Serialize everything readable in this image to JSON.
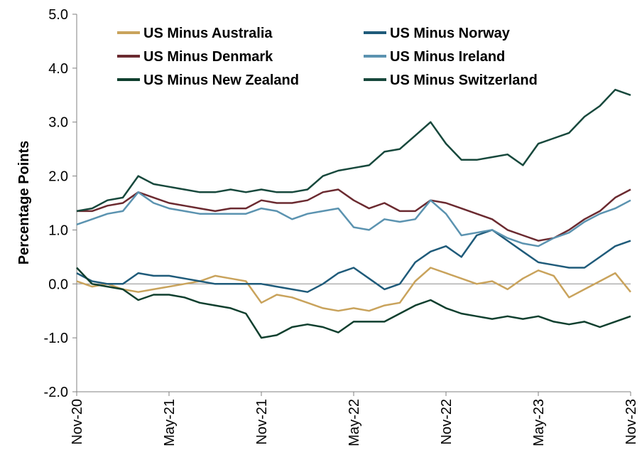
{
  "chart_data": {
    "type": "line",
    "title": "",
    "ylabel": "Percentage Points",
    "xlabel": "",
    "ylim": [
      -2.0,
      5.0
    ],
    "y_ticks": [
      "5.0",
      "4.0",
      "3.0",
      "2.0",
      "1.0",
      "0.0",
      "-1.0",
      "-2.0"
    ],
    "x_ticks": [
      "Nov-20",
      "May-21",
      "Nov-21",
      "May-22",
      "Nov-22",
      "May-23",
      "Nov-23"
    ],
    "xlim": [
      "2020-11",
      "2023-11"
    ],
    "grid": false,
    "legend_position": "top",
    "series": [
      {
        "name": "US Minus Australia",
        "color": "#C9A35C",
        "x": [
          "2020-11",
          "2020-12",
          "2021-01",
          "2021-02",
          "2021-03",
          "2021-04",
          "2021-05",
          "2021-06",
          "2021-07",
          "2021-08",
          "2021-09",
          "2021-10",
          "2021-11",
          "2021-12",
          "2022-01",
          "2022-02",
          "2022-03",
          "2022-04",
          "2022-05",
          "2022-06",
          "2022-07",
          "2022-08",
          "2022-09",
          "2022-10",
          "2022-11",
          "2022-12",
          "2023-01",
          "2023-02",
          "2023-03",
          "2023-04",
          "2023-05",
          "2023-06",
          "2023-07",
          "2023-08",
          "2023-09",
          "2023-10",
          "2023-11"
        ],
        "values": [
          0.05,
          -0.05,
          0.0,
          -0.1,
          -0.15,
          -0.1,
          -0.05,
          0.0,
          0.05,
          0.15,
          0.1,
          0.05,
          -0.35,
          -0.2,
          -0.25,
          -0.35,
          -0.45,
          -0.5,
          -0.45,
          -0.5,
          -0.4,
          -0.35,
          0.05,
          0.3,
          0.2,
          0.1,
          0.0,
          0.05,
          -0.1,
          0.1,
          0.25,
          0.15,
          -0.25,
          -0.1,
          0.05,
          0.2,
          -0.15
        ]
      },
      {
        "name": "US Minus Norway",
        "color": "#1F5B7A",
        "x": [
          "2020-11",
          "2020-12",
          "2021-01",
          "2021-02",
          "2021-03",
          "2021-04",
          "2021-05",
          "2021-06",
          "2021-07",
          "2021-08",
          "2021-09",
          "2021-10",
          "2021-11",
          "2021-12",
          "2022-01",
          "2022-02",
          "2022-03",
          "2022-04",
          "2022-05",
          "2022-06",
          "2022-07",
          "2022-08",
          "2022-09",
          "2022-10",
          "2022-11",
          "2022-12",
          "2023-01",
          "2023-02",
          "2023-03",
          "2023-04",
          "2023-05",
          "2023-06",
          "2023-07",
          "2023-08",
          "2023-09",
          "2023-10",
          "2023-11"
        ],
        "values": [
          0.2,
          0.05,
          0.0,
          0.0,
          0.2,
          0.15,
          0.15,
          0.1,
          0.05,
          0.0,
          0.0,
          0.0,
          0.0,
          -0.05,
          -0.1,
          -0.15,
          0.0,
          0.2,
          0.3,
          0.1,
          -0.1,
          0.0,
          0.4,
          0.6,
          0.7,
          0.5,
          0.9,
          1.0,
          0.8,
          0.6,
          0.4,
          0.35,
          0.3,
          0.3,
          0.5,
          0.7,
          0.8
        ]
      },
      {
        "name": "US Minus Denmark",
        "color": "#6B2A30",
        "x": [
          "2020-11",
          "2020-12",
          "2021-01",
          "2021-02",
          "2021-03",
          "2021-04",
          "2021-05",
          "2021-06",
          "2021-07",
          "2021-08",
          "2021-09",
          "2021-10",
          "2021-11",
          "2021-12",
          "2022-01",
          "2022-02",
          "2022-03",
          "2022-04",
          "2022-05",
          "2022-06",
          "2022-07",
          "2022-08",
          "2022-09",
          "2022-10",
          "2022-11",
          "2022-12",
          "2023-01",
          "2023-02",
          "2023-03",
          "2023-04",
          "2023-05",
          "2023-06",
          "2023-07",
          "2023-08",
          "2023-09",
          "2023-10",
          "2023-11"
        ],
        "values": [
          1.35,
          1.35,
          1.45,
          1.5,
          1.7,
          1.6,
          1.5,
          1.45,
          1.4,
          1.35,
          1.4,
          1.4,
          1.55,
          1.5,
          1.5,
          1.55,
          1.7,
          1.75,
          1.55,
          1.4,
          1.5,
          1.35,
          1.35,
          1.55,
          1.5,
          1.4,
          1.3,
          1.2,
          1.0,
          0.9,
          0.8,
          0.85,
          1.0,
          1.2,
          1.35,
          1.6,
          1.75
        ]
      },
      {
        "name": "US Minus Ireland",
        "color": "#5B93B0",
        "x": [
          "2020-11",
          "2020-12",
          "2021-01",
          "2021-02",
          "2021-03",
          "2021-04",
          "2021-05",
          "2021-06",
          "2021-07",
          "2021-08",
          "2021-09",
          "2021-10",
          "2021-11",
          "2021-12",
          "2022-01",
          "2022-02",
          "2022-03",
          "2022-04",
          "2022-05",
          "2022-06",
          "2022-07",
          "2022-08",
          "2022-09",
          "2022-10",
          "2022-11",
          "2022-12",
          "2023-01",
          "2023-02",
          "2023-03",
          "2023-04",
          "2023-05",
          "2023-06",
          "2023-07",
          "2023-08",
          "2023-09",
          "2023-10",
          "2023-11"
        ],
        "values": [
          1.1,
          1.2,
          1.3,
          1.35,
          1.7,
          1.5,
          1.4,
          1.35,
          1.3,
          1.3,
          1.3,
          1.3,
          1.4,
          1.35,
          1.2,
          1.3,
          1.35,
          1.4,
          1.05,
          1.0,
          1.2,
          1.15,
          1.2,
          1.55,
          1.3,
          0.9,
          0.95,
          1.0,
          0.85,
          0.75,
          0.7,
          0.85,
          0.95,
          1.15,
          1.3,
          1.4,
          1.55
        ]
      },
      {
        "name": "US Minus New Zealand",
        "color": "#0F3F2E",
        "x": [
          "2020-11",
          "2020-12",
          "2021-01",
          "2021-02",
          "2021-03",
          "2021-04",
          "2021-05",
          "2021-06",
          "2021-07",
          "2021-08",
          "2021-09",
          "2021-10",
          "2021-11",
          "2021-12",
          "2022-01",
          "2022-02",
          "2022-03",
          "2022-04",
          "2022-05",
          "2022-06",
          "2022-07",
          "2022-08",
          "2022-09",
          "2022-10",
          "2022-11",
          "2022-12",
          "2023-01",
          "2023-02",
          "2023-03",
          "2023-04",
          "2023-05",
          "2023-06",
          "2023-07",
          "2023-08",
          "2023-09",
          "2023-10",
          "2023-11"
        ],
        "values": [
          0.3,
          0.0,
          -0.05,
          -0.1,
          -0.3,
          -0.2,
          -0.2,
          -0.25,
          -0.35,
          -0.4,
          -0.45,
          -0.55,
          -1.0,
          -0.95,
          -0.8,
          -0.75,
          -0.8,
          -0.9,
          -0.7,
          -0.7,
          -0.7,
          -0.55,
          -0.4,
          -0.3,
          -0.45,
          -0.55,
          -0.6,
          -0.65,
          -0.6,
          -0.65,
          -0.6,
          -0.7,
          -0.75,
          -0.7,
          -0.8,
          -0.7,
          -0.6
        ]
      },
      {
        "name": "US Minus Switzerland",
        "color": "#17483C",
        "x": [
          "2020-11",
          "2020-12",
          "2021-01",
          "2021-02",
          "2021-03",
          "2021-04",
          "2021-05",
          "2021-06",
          "2021-07",
          "2021-08",
          "2021-09",
          "2021-10",
          "2021-11",
          "2021-12",
          "2022-01",
          "2022-02",
          "2022-03",
          "2022-04",
          "2022-05",
          "2022-06",
          "2022-07",
          "2022-08",
          "2022-09",
          "2022-10",
          "2022-11",
          "2022-12",
          "2023-01",
          "2023-02",
          "2023-03",
          "2023-04",
          "2023-05",
          "2023-06",
          "2023-07",
          "2023-08",
          "2023-09",
          "2023-10",
          "2023-11"
        ],
        "values": [
          1.35,
          1.4,
          1.55,
          1.6,
          2.0,
          1.85,
          1.8,
          1.75,
          1.7,
          1.7,
          1.75,
          1.7,
          1.75,
          1.7,
          1.7,
          1.75,
          2.0,
          2.1,
          2.15,
          2.2,
          2.45,
          2.5,
          2.75,
          3.0,
          2.6,
          2.3,
          2.3,
          2.35,
          2.4,
          2.2,
          2.6,
          2.7,
          2.8,
          3.1,
          3.3,
          3.6,
          3.5
        ]
      }
    ]
  }
}
